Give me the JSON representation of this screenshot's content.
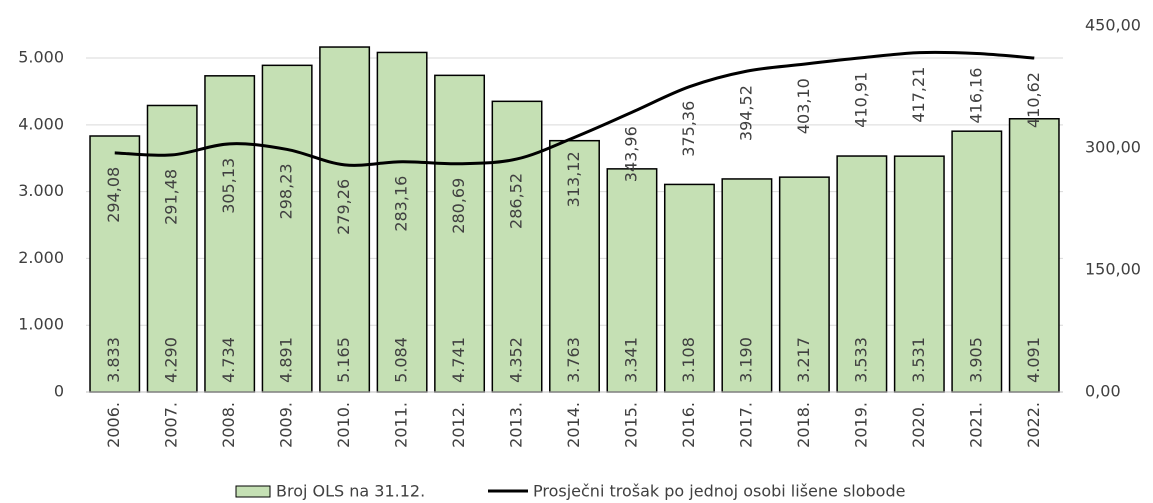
{
  "chart_data": {
    "type": "bar_line",
    "categories": [
      "2006.",
      "2007.",
      "2008.",
      "2009.",
      "2010.",
      "2011.",
      "2012.",
      "2013.",
      "2014.",
      "2015.",
      "2016.",
      "2017.",
      "2018.",
      "2019.",
      "2020.",
      "2021.",
      "2022."
    ],
    "series": [
      {
        "name": "Broj OLS na 31.12.",
        "type": "bar",
        "color": "#c5e0b4",
        "values": [
          3833,
          4290,
          4734,
          4891,
          5165,
          5084,
          4741,
          4352,
          3763,
          3341,
          3108,
          3190,
          3217,
          3533,
          3531,
          3905,
          4091
        ],
        "value_labels": [
          "3.833",
          "4.290",
          "4.734",
          "4.891",
          "5.165",
          "5.084",
          "4.741",
          "4.352",
          "3.763",
          "3.341",
          "3.108",
          "3.190",
          "3.217",
          "3.533",
          "3.531",
          "3.905",
          "4.091"
        ]
      },
      {
        "name": "Prosječni trošak po jednoj osobi lišene slobode",
        "type": "line",
        "color": "#000000",
        "axis": "y2",
        "values": [
          294.08,
          291.48,
          305.13,
          298.23,
          279.26,
          283.16,
          280.69,
          286.52,
          313.12,
          343.96,
          375.36,
          394.52,
          403.1,
          410.91,
          417.21,
          416.16,
          410.62
        ],
        "value_labels": [
          "294,08",
          "291,48",
          "305,13",
          "298,23",
          "279,26",
          "283,16",
          "280,69",
          "286,52",
          "313,12",
          "343,96",
          "375,36",
          "394,52",
          "403,10",
          "410,91",
          "417,21",
          "416,16",
          "410,62"
        ]
      }
    ],
    "ylim": [
      0,
      5480
    ],
    "yticks": [
      0,
      {
        "value": 1000,
        "label": "1.000"
      },
      {
        "value": 2000,
        "label": "2.000"
      },
      {
        "value": 3000,
        "label": "3.000"
      },
      {
        "value": 4000,
        "label": "4.000"
      },
      {
        "value": 5000,
        "label": "5.000"
      }
    ],
    "y2lim": [
      0,
      450
    ],
    "y2ticks": [
      {
        "value": 0,
        "label": "0,00"
      },
      {
        "value": 150,
        "label": "150,00"
      },
      {
        "value": 300,
        "label": "300,00"
      },
      {
        "value": 450,
        "label": "450,00"
      }
    ],
    "grid": true
  }
}
